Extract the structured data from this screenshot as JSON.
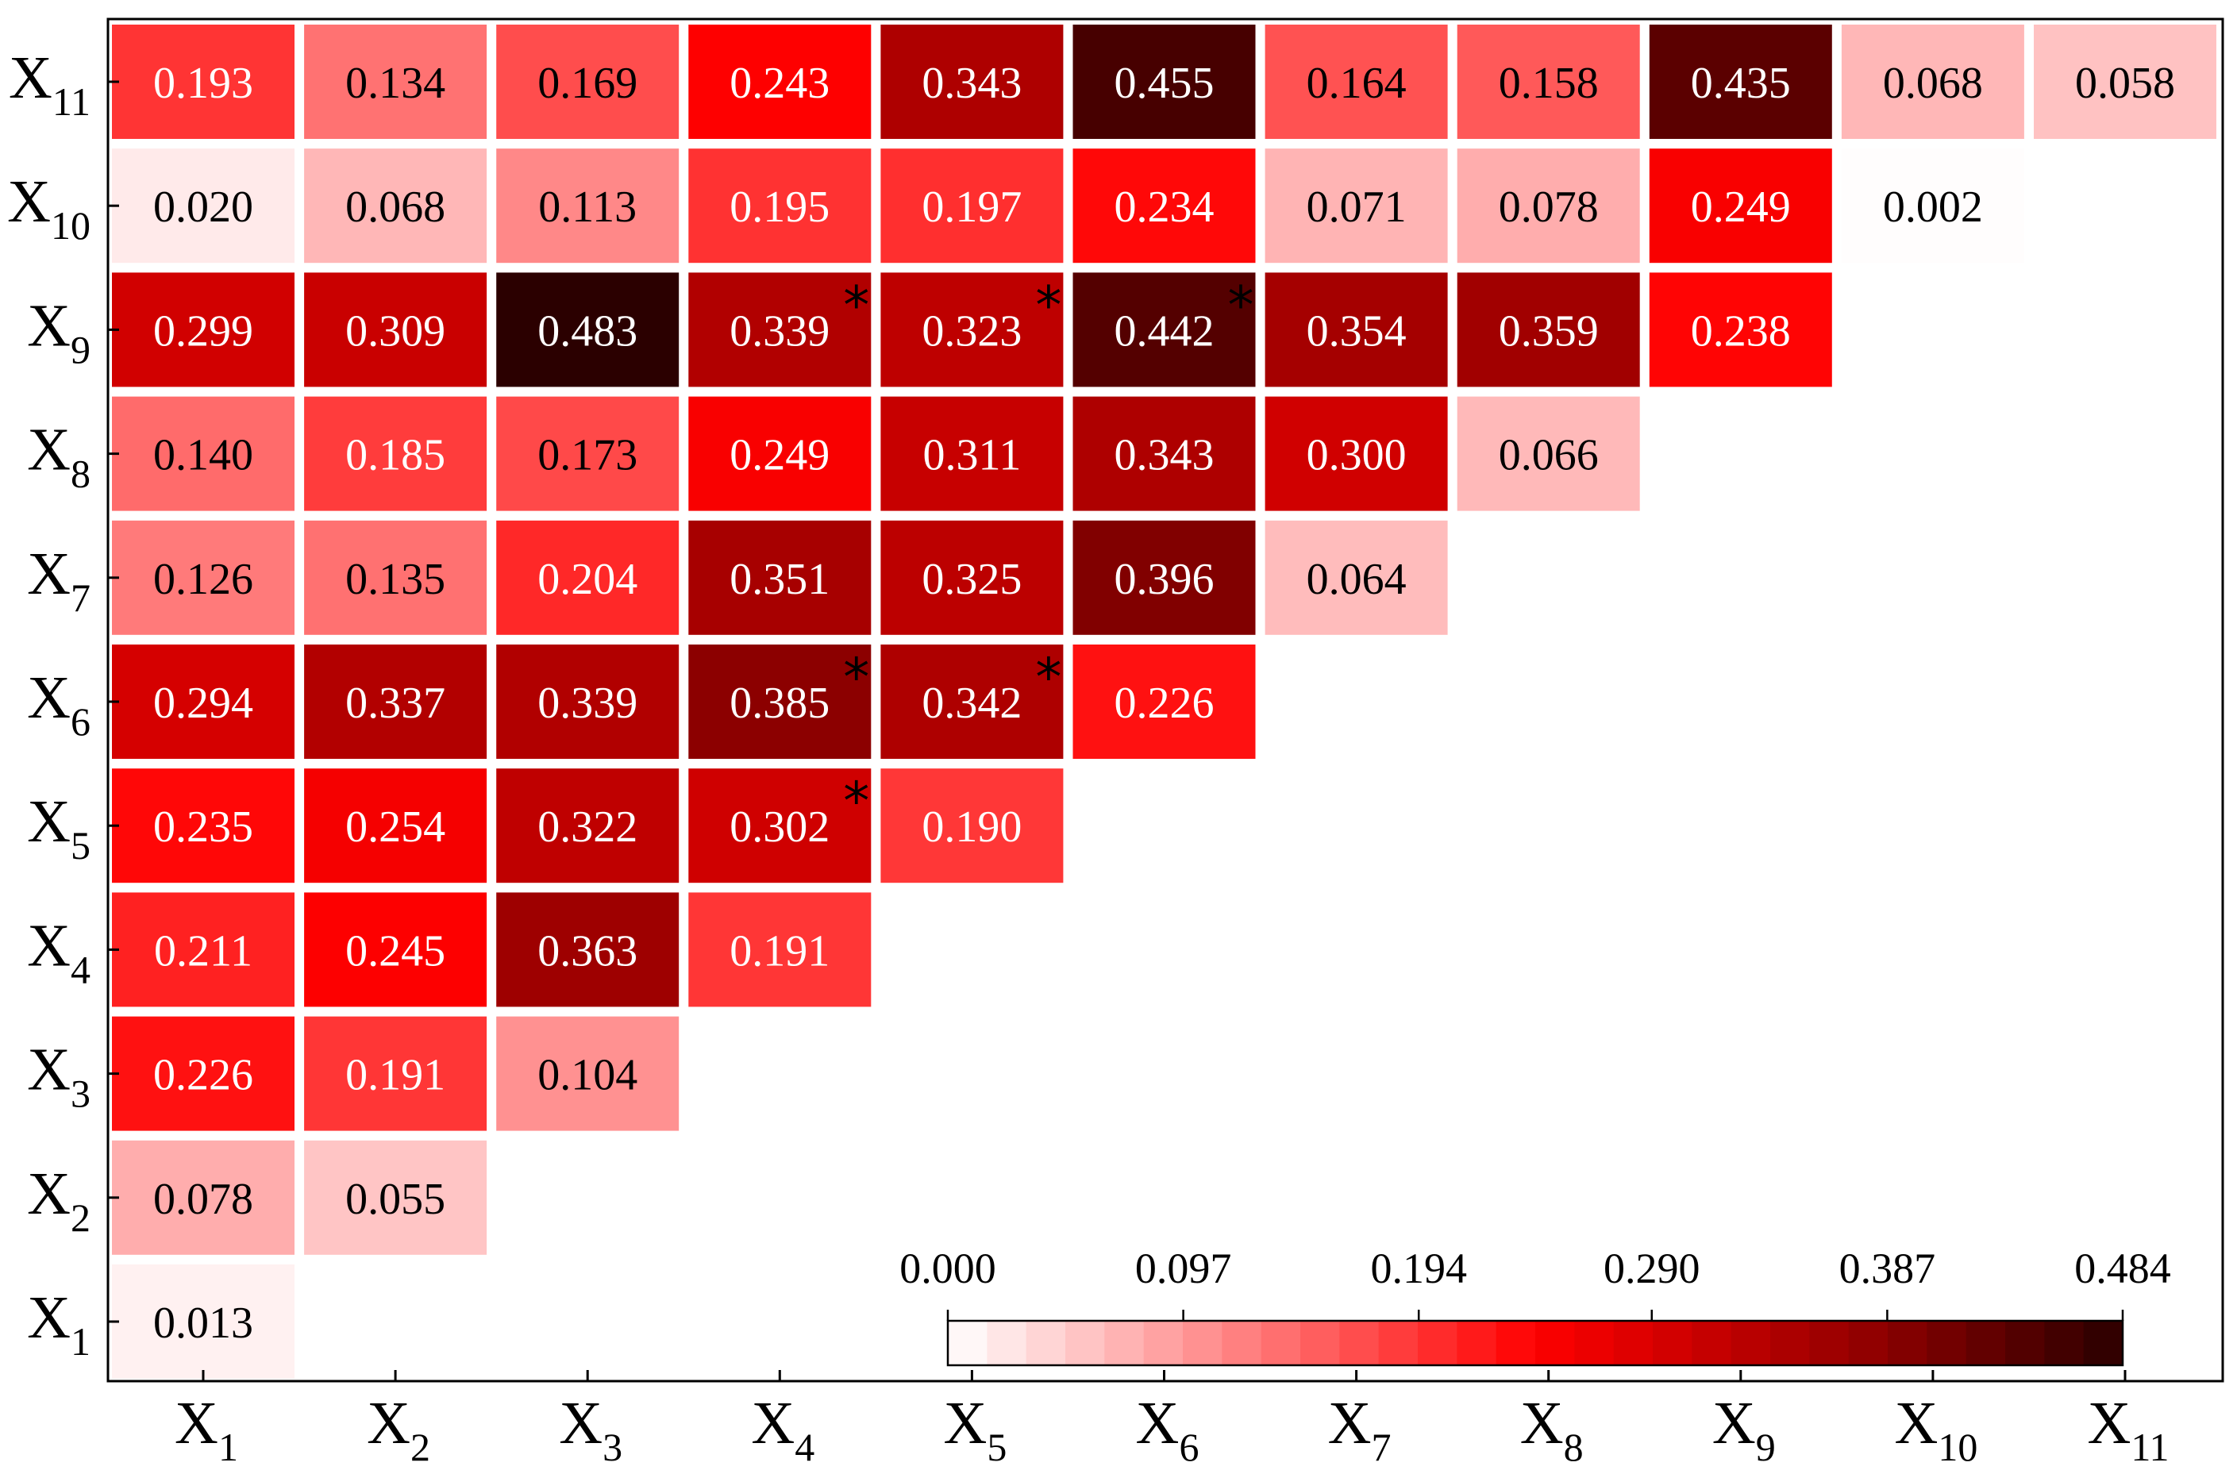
{
  "chart_data": {
    "type": "heatmap",
    "title": "",
    "xlabel": "",
    "ylabel": "",
    "x_tick_labels": [
      {
        "main": "X",
        "sub": "1"
      },
      {
        "main": "X",
        "sub": "2"
      },
      {
        "main": "X",
        "sub": "3"
      },
      {
        "main": "X",
        "sub": "4"
      },
      {
        "main": "X",
        "sub": "5"
      },
      {
        "main": "X",
        "sub": "6"
      },
      {
        "main": "X",
        "sub": "7"
      },
      {
        "main": "X",
        "sub": "8"
      },
      {
        "main": "X",
        "sub": "9"
      },
      {
        "main": "X",
        "sub": "10"
      },
      {
        "main": "X",
        "sub": "11"
      }
    ],
    "y_tick_labels": [
      {
        "main": "X",
        "sub": "1"
      },
      {
        "main": "X",
        "sub": "2"
      },
      {
        "main": "X",
        "sub": "3"
      },
      {
        "main": "X",
        "sub": "4"
      },
      {
        "main": "X",
        "sub": "5"
      },
      {
        "main": "X",
        "sub": "6"
      },
      {
        "main": "X",
        "sub": "7"
      },
      {
        "main": "X",
        "sub": "8"
      },
      {
        "main": "X",
        "sub": "9"
      },
      {
        "main": "X",
        "sub": "10"
      },
      {
        "main": "X",
        "sub": "11"
      }
    ],
    "rows": [
      {
        "y": 1,
        "values": [
          0.013
        ]
      },
      {
        "y": 2,
        "values": [
          0.078,
          0.055
        ]
      },
      {
        "y": 3,
        "values": [
          0.226,
          0.191,
          0.104
        ]
      },
      {
        "y": 4,
        "values": [
          0.211,
          0.245,
          0.363,
          0.191
        ]
      },
      {
        "y": 5,
        "values": [
          0.235,
          0.254,
          0.322,
          0.302,
          0.19
        ]
      },
      {
        "y": 6,
        "values": [
          0.294,
          0.337,
          0.339,
          0.385,
          0.342,
          0.226
        ]
      },
      {
        "y": 7,
        "values": [
          0.126,
          0.135,
          0.204,
          0.351,
          0.325,
          0.396,
          0.064
        ]
      },
      {
        "y": 8,
        "values": [
          0.14,
          0.185,
          0.173,
          0.249,
          0.311,
          0.343,
          0.3,
          0.066
        ]
      },
      {
        "y": 9,
        "values": [
          0.299,
          0.309,
          0.483,
          0.339,
          0.323,
          0.442,
          0.354,
          0.359,
          0.238
        ]
      },
      {
        "y": 10,
        "values": [
          0.02,
          0.068,
          0.113,
          0.195,
          0.197,
          0.234,
          0.071,
          0.078,
          0.249,
          0.002
        ]
      },
      {
        "y": 11,
        "values": [
          0.193,
          0.134,
          0.169,
          0.243,
          0.343,
          0.455,
          0.164,
          0.158,
          0.435,
          0.068,
          0.058
        ]
      }
    ],
    "significant": [
      {
        "x": 4,
        "y": 5
      },
      {
        "x": 4,
        "y": 6
      },
      {
        "x": 5,
        "y": 6
      },
      {
        "x": 4,
        "y": 9
      },
      {
        "x": 5,
        "y": 9
      },
      {
        "x": 6,
        "y": 9
      }
    ],
    "significance_marker": "*",
    "colorbar": {
      "range": [
        0,
        0.484
      ],
      "tick_labels": [
        "0.000",
        "0.097",
        "0.194",
        "0.290",
        "0.387",
        "0.484"
      ],
      "tick_values": [
        0,
        0.097,
        0.194,
        0.29,
        0.387,
        0.484
      ],
      "placement": "bottom-right",
      "colors": [
        "#ffffff",
        "#ff0000",
        "#8a0000",
        "#2a0000"
      ]
    }
  }
}
